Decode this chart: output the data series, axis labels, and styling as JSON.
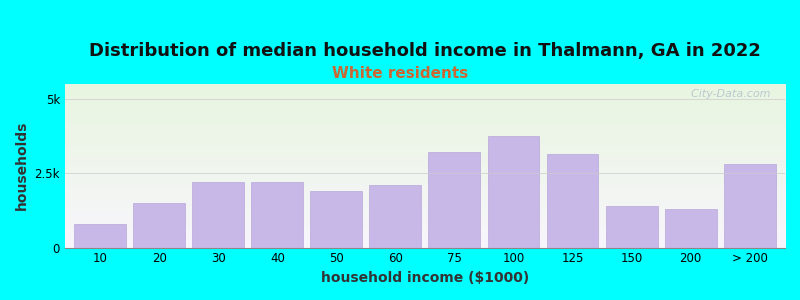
{
  "title": "Distribution of median household income in Thalmann, GA in 2022",
  "subtitle": "White residents",
  "xlabel": "household income ($1000)",
  "ylabel": "households",
  "background_color": "#00FFFF",
  "bar_color": "#c8b8e8",
  "bar_edge_color": "#b8a8d8",
  "categories": [
    "10",
    "20",
    "30",
    "40",
    "50",
    "60",
    "75",
    "100",
    "125",
    "150",
    "200",
    "> 200"
  ],
  "values": [
    800,
    1500,
    2200,
    2200,
    1900,
    2100,
    3200,
    3750,
    3150,
    1400,
    1300,
    2800
  ],
  "yticks": [
    0,
    2500,
    5000
  ],
  "yticklabels": [
    "0",
    "2.5k",
    "5k"
  ],
  "ylim": [
    0,
    5500
  ],
  "title_fontsize": 13,
  "subtitle_fontsize": 11,
  "subtitle_color": "#cc6633",
  "watermark": "  City-Data.com",
  "plot_bg_colors": [
    "#e8f5e0",
    "#f8f6fc"
  ]
}
